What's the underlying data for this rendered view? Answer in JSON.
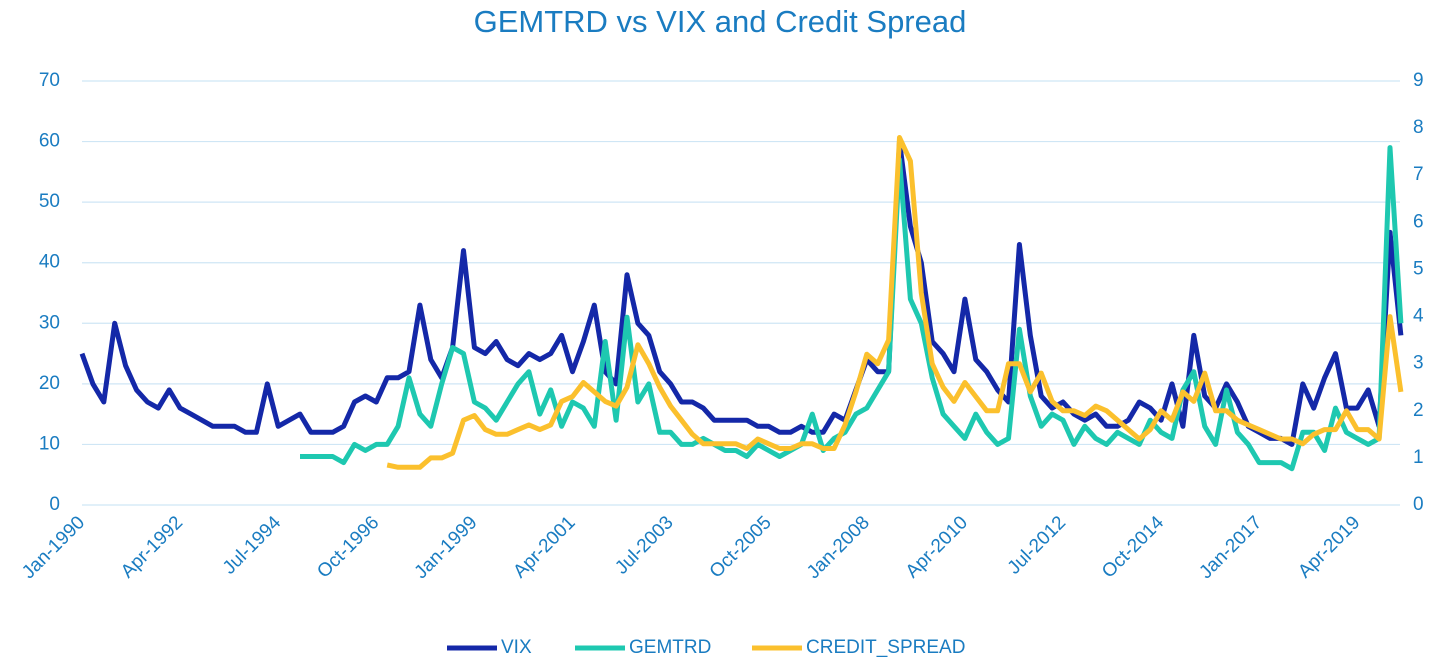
{
  "chart_data": {
    "type": "line",
    "title": "GEMTRD vs VIX and Credit Spread",
    "categories": [
      "Jan-1990",
      null,
      null,
      null,
      null,
      null,
      null,
      null,
      null,
      "Apr-1992",
      null,
      null,
      null,
      null,
      null,
      null,
      null,
      null,
      "Jul-1994",
      null,
      null,
      null,
      null,
      null,
      null,
      null,
      null,
      "Oct-1996",
      null,
      null,
      null,
      null,
      null,
      null,
      null,
      null,
      "Jan-1999",
      null,
      null,
      null,
      null,
      null,
      null,
      null,
      null,
      "Apr-2001",
      null,
      null,
      null,
      null,
      null,
      null,
      null,
      null,
      "Jul-2003",
      null,
      null,
      null,
      null,
      null,
      null,
      null,
      null,
      "Oct-2005",
      null,
      null,
      null,
      null,
      null,
      null,
      null,
      null,
      "Jan-2008",
      null,
      null,
      null,
      null,
      null,
      null,
      null,
      null,
      "Apr-2010",
      null,
      null,
      null,
      null,
      null,
      null,
      null,
      null,
      "Jul-2012",
      null,
      null,
      null,
      null,
      null,
      null,
      null,
      null,
      "Oct-2014",
      null,
      null,
      null,
      null,
      null,
      null,
      null,
      null,
      "Jan-2017",
      null,
      null,
      null,
      null,
      null,
      null,
      null,
      null,
      "Apr-2019",
      null,
      null,
      null,
      null
    ],
    "series": [
      {
        "name": "VIX",
        "color": "#1428a8",
        "values": [
          25,
          20,
          17,
          30,
          23,
          19,
          17,
          16,
          19,
          16,
          15,
          14,
          13,
          13,
          13,
          12,
          12,
          20,
          13,
          14,
          15,
          12,
          12,
          12,
          13,
          17,
          18,
          17,
          21,
          21,
          22,
          33,
          24,
          21,
          26,
          42,
          26,
          25,
          27,
          24,
          23,
          25,
          24,
          25,
          28,
          22,
          27,
          33,
          22,
          20,
          38,
          30,
          28,
          22,
          20,
          17,
          17,
          16,
          14,
          14,
          14,
          14,
          13,
          13,
          12,
          12,
          13,
          12,
          12,
          15,
          14,
          19,
          24,
          22,
          22,
          60,
          46,
          40,
          27,
          25,
          22,
          34,
          24,
          22,
          19,
          17,
          43,
          28,
          18,
          16,
          17,
          15,
          14,
          15,
          13,
          13,
          14,
          17,
          16,
          14,
          20,
          13,
          28,
          18,
          16,
          20,
          17,
          13,
          12,
          11,
          11,
          10,
          20,
          16,
          21,
          25,
          16,
          16,
          19,
          13,
          45,
          28
        ]
      },
      {
        "name": "GEMTRD",
        "color": "#1ec8b0",
        "values": [
          null,
          null,
          null,
          null,
          null,
          null,
          null,
          null,
          null,
          null,
          null,
          null,
          null,
          null,
          null,
          null,
          null,
          null,
          null,
          null,
          8,
          8,
          8,
          8,
          7,
          10,
          9,
          10,
          10,
          13,
          21,
          15,
          13,
          20,
          26,
          25,
          17,
          16,
          14,
          17,
          20,
          22,
          15,
          19,
          13,
          17,
          16,
          13,
          27,
          14,
          31,
          17,
          20,
          12,
          12,
          10,
          10,
          11,
          10,
          9,
          9,
          8,
          10,
          9,
          8,
          9,
          10,
          15,
          9,
          11,
          12,
          15,
          16,
          19,
          22,
          57,
          34,
          30,
          21,
          15,
          13,
          11,
          15,
          12,
          10,
          11,
          29,
          18,
          13,
          15,
          14,
          10,
          13,
          11,
          10,
          12,
          11,
          10,
          14,
          12,
          11,
          19,
          22,
          13,
          10,
          19,
          12,
          10,
          7,
          7,
          7,
          6,
          12,
          12,
          9,
          16,
          12,
          11,
          10,
          11,
          59,
          30
        ]
      },
      {
        "name": "CREDIT_SPREAD",
        "color": "#fbc02d",
        "axis": "y2",
        "values": [
          null,
          null,
          null,
          null,
          null,
          null,
          null,
          null,
          null,
          null,
          null,
          null,
          null,
          null,
          null,
          null,
          null,
          null,
          null,
          null,
          null,
          null,
          null,
          null,
          null,
          null,
          null,
          null,
          0.85,
          0.8,
          0.8,
          0.8,
          1.0,
          1.0,
          1.1,
          1.8,
          1.9,
          1.6,
          1.5,
          1.5,
          1.6,
          1.7,
          1.6,
          1.7,
          2.2,
          2.3,
          2.6,
          2.4,
          2.2,
          2.1,
          2.5,
          3.4,
          3.0,
          2.5,
          2.1,
          1.8,
          1.5,
          1.3,
          1.3,
          1.3,
          1.3,
          1.2,
          1.4,
          1.3,
          1.2,
          1.2,
          1.3,
          1.3,
          1.2,
          1.2,
          1.7,
          2.4,
          3.2,
          3.0,
          3.5,
          7.8,
          7.3,
          4.5,
          3.0,
          2.5,
          2.2,
          2.6,
          2.3,
          2.0,
          2.0,
          3.0,
          3.0,
          2.4,
          2.8,
          2.2,
          2.0,
          2.0,
          1.9,
          2.1,
          2.0,
          1.8,
          1.6,
          1.4,
          1.6,
          2.0,
          1.8,
          2.4,
          2.2,
          2.8,
          2.0,
          2.0,
          1.8,
          1.7,
          1.6,
          1.5,
          1.4,
          1.4,
          1.3,
          1.5,
          1.6,
          1.6,
          2.0,
          1.6,
          1.6,
          1.4,
          4.0,
          2.4
        ]
      }
    ],
    "ylim": [
      0,
      70
    ],
    "yticks": [
      0,
      10,
      20,
      30,
      40,
      50,
      60,
      70
    ],
    "y2lim": [
      0,
      9
    ],
    "y2ticks": [
      0,
      1,
      2,
      3,
      4,
      5,
      6,
      7,
      8,
      9
    ],
    "grid": true,
    "legend": "bottom"
  }
}
